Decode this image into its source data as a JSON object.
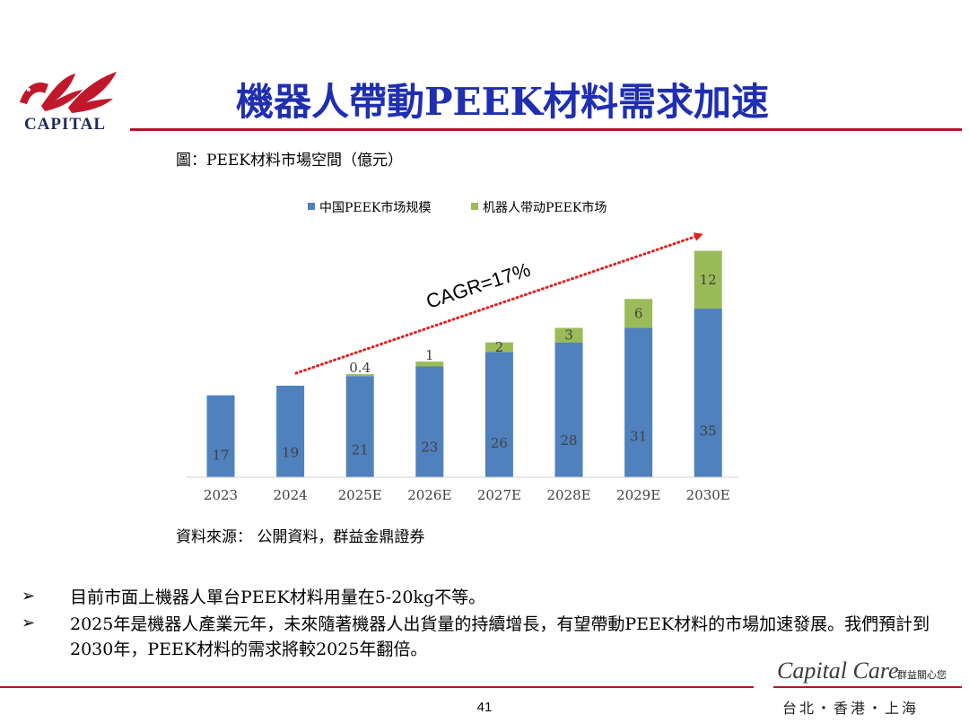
{
  "slide": {
    "title": "機器人帶動PEEK材料需求加速",
    "logo_text": "CAPITAL",
    "figure_caption": "圖：PEEK材料市場空間（億元）",
    "source": "資料來源： 公開資料，群益金鼎證券",
    "bullets": [
      {
        "mark": "➢",
        "text": "目前市面上機器人單台PEEK材料用量在5-20kg不等。"
      },
      {
        "mark": "➢",
        "text": "2025年是機器人產業元年，未來隨著機器人出貨量的持續增長，有望帶動PEEK材料的市場加速發展。我們預計到2030年，PEEK材料的需求將較2025年翻倍。"
      }
    ],
    "footer": {
      "brand_script": "Capital Care",
      "brand_tag": "群益關心您",
      "page_number": "41",
      "cities": "台北・香港・上海"
    }
  },
  "colors": {
    "title": "#1f2fb0",
    "rule": "#b0182a",
    "series_china": "#4f81bd",
    "series_robot": "#9bbb59",
    "arrow": "#e02020",
    "logo": "#c0182a"
  },
  "icons": {
    "logo": "capital-eagle-logo",
    "bullet": "arrowhead-bullet"
  },
  "chart_data": {
    "type": "bar",
    "stacked": true,
    "categories": [
      "2023",
      "2024",
      "2025E",
      "2026E",
      "2027E",
      "2028E",
      "2029E",
      "2030E"
    ],
    "series": [
      {
        "name": "中国PEEK市场规模",
        "values": [
          17,
          19,
          21,
          23,
          26,
          28,
          31,
          35
        ],
        "labels": [
          "17",
          "19",
          "21",
          "23",
          "26",
          "28",
          "31",
          "35"
        ]
      },
      {
        "name": "机器人带动PEEK市场",
        "values": [
          0,
          0,
          0.4,
          1,
          2,
          3,
          6,
          12
        ],
        "labels": [
          "",
          "",
          "0.4",
          "1",
          "2",
          "3",
          "6",
          "12"
        ]
      }
    ],
    "annotation": "CAGR=17%",
    "legend_position": "top",
    "grid": false,
    "ylim": [
      0,
      50
    ]
  }
}
